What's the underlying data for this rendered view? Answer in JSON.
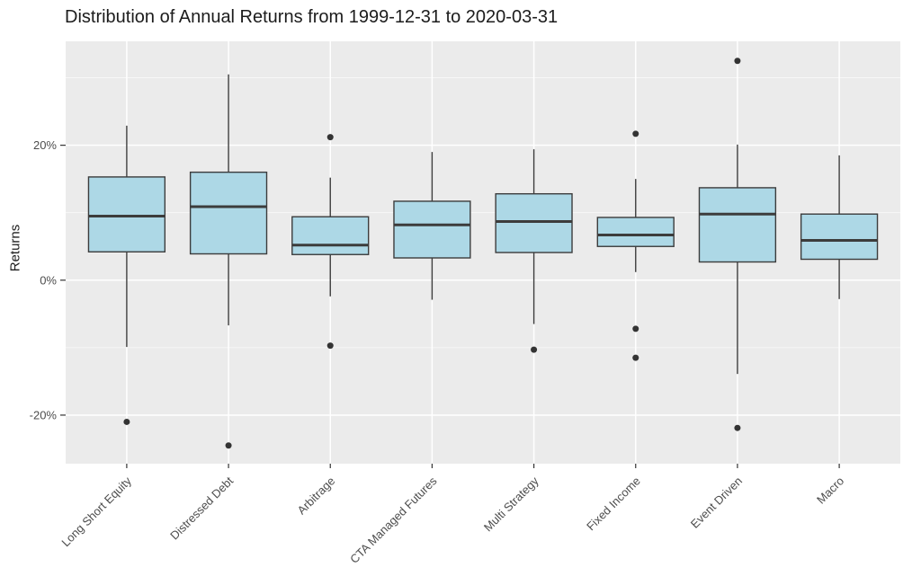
{
  "chart_data": {
    "type": "boxplot",
    "title": "Distribution of Annual Returns from 1999-12-31 to 2020-03-31",
    "xlabel": "",
    "ylabel": "Returns",
    "unit": "percent",
    "ylim": [
      -27.2,
      35.4
    ],
    "grid": true,
    "legend": "none",
    "y_ticks": [
      {
        "value": -20,
        "label": "-20%"
      },
      {
        "value": 0,
        "label": "0%"
      },
      {
        "value": 20,
        "label": "20%"
      }
    ],
    "y_minor_ticks": [
      -10,
      10,
      30
    ],
    "categories": [
      "Long Short Equity",
      "Distressed Debt",
      "Arbitrage",
      "CTA Managed Futures",
      "Multi Strategy",
      "Fixed Income",
      "Event Driven",
      "Macro"
    ],
    "series": [
      {
        "category": "Long Short Equity",
        "whisker_low": -9.9,
        "q1": 4.2,
        "median": 9.5,
        "q3": 15.3,
        "whisker_high": 22.9,
        "outliers": [
          -21.0
        ]
      },
      {
        "category": "Distressed Debt",
        "whisker_low": -6.7,
        "q1": 3.9,
        "median": 10.9,
        "q3": 16.0,
        "whisker_high": 30.5,
        "outliers": [
          -24.5
        ]
      },
      {
        "category": "Arbitrage",
        "whisker_low": -2.4,
        "q1": 3.8,
        "median": 5.2,
        "q3": 9.4,
        "whisker_high": 15.2,
        "outliers": [
          21.2,
          -9.7
        ]
      },
      {
        "category": "CTA Managed Futures",
        "whisker_low": -2.9,
        "q1": 3.3,
        "median": 8.2,
        "q3": 11.7,
        "whisker_high": 19.0,
        "outliers": []
      },
      {
        "category": "Multi Strategy",
        "whisker_low": -6.5,
        "q1": 4.1,
        "median": 8.7,
        "q3": 12.8,
        "whisker_high": 19.4,
        "outliers": [
          -10.3
        ]
      },
      {
        "category": "Fixed Income",
        "whisker_low": 1.2,
        "q1": 5.0,
        "median": 6.7,
        "q3": 9.3,
        "whisker_high": 15.0,
        "outliers": [
          21.7,
          -7.2,
          -11.5
        ]
      },
      {
        "category": "Event Driven",
        "whisker_low": -13.9,
        "q1": 2.7,
        "median": 9.8,
        "q3": 13.7,
        "whisker_high": 20.1,
        "outliers": [
          32.5,
          -21.9
        ]
      },
      {
        "category": "Macro",
        "whisker_low": -2.8,
        "q1": 3.1,
        "median": 5.9,
        "q3": 9.8,
        "whisker_high": 18.5,
        "outliers": []
      }
    ],
    "colors": {
      "box_fill": "#ADD8E6",
      "box_stroke": "#3C3C3C",
      "panel_bg": "#EBEBEB",
      "grid_major": "#FFFFFF",
      "grid_minor": "#F8F8F8",
      "tick_mark": "#333333",
      "tick_label": "#4D4D4D",
      "outlier": "#333333",
      "title": "#1C1C1C"
    }
  }
}
